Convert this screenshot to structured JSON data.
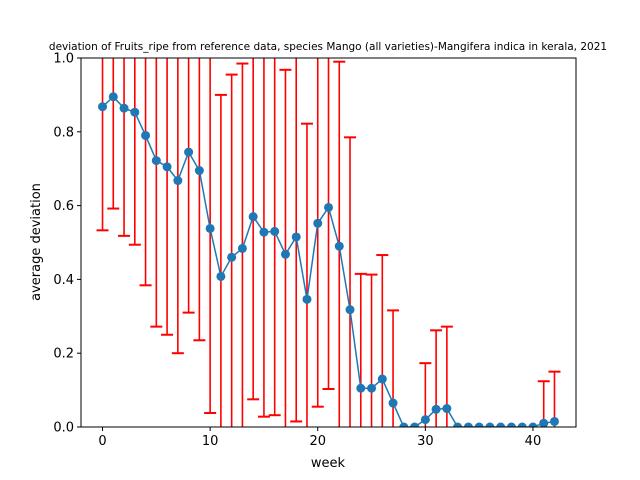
{
  "chart_data": {
    "type": "line",
    "title": "deviation of Fruits_ripe from reference data, species Mango (all varieties)-Mangifera indica in kerala, 2021",
    "xlabel": "week",
    "ylabel": "average deviation",
    "xlim": [
      -2,
      44
    ],
    "ylim": [
      0,
      1.0
    ],
    "xticks": [
      0,
      10,
      20,
      30,
      40
    ],
    "yticks": [
      0.0,
      0.2,
      0.4,
      0.6,
      0.8,
      1.0
    ],
    "xtick_labels": [
      "0",
      "10",
      "20",
      "30",
      "40"
    ],
    "ytick_labels": [
      "0.0",
      "0.2",
      "0.4",
      "0.6",
      "0.8",
      "1.0"
    ],
    "grid": false,
    "line_color": "#1f77b4",
    "error_color": "#ff0000",
    "points": [
      {
        "x": 0,
        "y": 0.868,
        "lo": 0.533,
        "hi": 1.2
      },
      {
        "x": 1,
        "y": 0.895,
        "lo": 0.592,
        "hi": 1.2
      },
      {
        "x": 2,
        "y": 0.864,
        "lo": 0.518,
        "hi": 1.2
      },
      {
        "x": 3,
        "y": 0.853,
        "lo": 0.494,
        "hi": 1.2
      },
      {
        "x": 4,
        "y": 0.79,
        "lo": 0.384,
        "hi": 1.2
      },
      {
        "x": 5,
        "y": 0.722,
        "lo": 0.272,
        "hi": 1.2
      },
      {
        "x": 6,
        "y": 0.705,
        "lo": 0.25,
        "hi": 1.2
      },
      {
        "x": 7,
        "y": 0.668,
        "lo": 0.2,
        "hi": 1.2
      },
      {
        "x": 8,
        "y": 0.745,
        "lo": 0.31,
        "hi": 1.2
      },
      {
        "x": 9,
        "y": 0.695,
        "lo": 0.235,
        "hi": 1.2
      },
      {
        "x": 10,
        "y": 0.538,
        "lo": 0.038,
        "hi": 1.2
      },
      {
        "x": 11,
        "y": 0.408,
        "lo": -0.1,
        "hi": 0.9
      },
      {
        "x": 12,
        "y": 0.46,
        "lo": -0.1,
        "hi": 0.955
      },
      {
        "x": 13,
        "y": 0.484,
        "lo": -0.1,
        "hi": 0.985
      },
      {
        "x": 14,
        "y": 0.57,
        "lo": 0.075,
        "hi": 1.2
      },
      {
        "x": 15,
        "y": 0.528,
        "lo": 0.028,
        "hi": 1.2
      },
      {
        "x": 16,
        "y": 0.53,
        "lo": 0.032,
        "hi": 1.2
      },
      {
        "x": 17,
        "y": 0.468,
        "lo": -0.1,
        "hi": 0.968
      },
      {
        "x": 18,
        "y": 0.515,
        "lo": 0.015,
        "hi": 1.2
      },
      {
        "x": 19,
        "y": 0.346,
        "lo": -0.1,
        "hi": 0.822
      },
      {
        "x": 20,
        "y": 0.552,
        "lo": 0.055,
        "hi": 1.2
      },
      {
        "x": 21,
        "y": 0.595,
        "lo": 0.103,
        "hi": 1.2
      },
      {
        "x": 22,
        "y": 0.49,
        "lo": -0.1,
        "hi": 0.99
      },
      {
        "x": 23,
        "y": 0.318,
        "lo": -0.1,
        "hi": 0.785
      },
      {
        "x": 24,
        "y": 0.105,
        "lo": -0.1,
        "hi": 0.415
      },
      {
        "x": 25,
        "y": 0.105,
        "lo": -0.1,
        "hi": 0.413
      },
      {
        "x": 26,
        "y": 0.13,
        "lo": -0.1,
        "hi": 0.466
      },
      {
        "x": 27,
        "y": 0.065,
        "lo": -0.1,
        "hi": 0.316
      },
      {
        "x": 28,
        "y": 0.0,
        "lo": 0.0,
        "hi": 0.0
      },
      {
        "x": 29,
        "y": 0.0,
        "lo": 0.0,
        "hi": 0.0
      },
      {
        "x": 30,
        "y": 0.02,
        "lo": -0.1,
        "hi": 0.173
      },
      {
        "x": 31,
        "y": 0.048,
        "lo": -0.1,
        "hi": 0.262
      },
      {
        "x": 32,
        "y": 0.05,
        "lo": -0.1,
        "hi": 0.272
      },
      {
        "x": 33,
        "y": 0.0,
        "lo": 0.0,
        "hi": 0.0
      },
      {
        "x": 34,
        "y": 0.0,
        "lo": 0.0,
        "hi": 0.0
      },
      {
        "x": 35,
        "y": 0.0,
        "lo": 0.0,
        "hi": 0.0
      },
      {
        "x": 36,
        "y": 0.0,
        "lo": 0.0,
        "hi": 0.0
      },
      {
        "x": 37,
        "y": 0.0,
        "lo": 0.0,
        "hi": 0.0
      },
      {
        "x": 38,
        "y": 0.0,
        "lo": 0.0,
        "hi": 0.0
      },
      {
        "x": 39,
        "y": 0.0,
        "lo": 0.0,
        "hi": 0.0
      },
      {
        "x": 40,
        "y": 0.0,
        "lo": 0.0,
        "hi": 0.0
      },
      {
        "x": 41,
        "y": 0.01,
        "lo": -0.1,
        "hi": 0.124
      },
      {
        "x": 42,
        "y": 0.015,
        "lo": -0.1,
        "hi": 0.15
      }
    ]
  }
}
